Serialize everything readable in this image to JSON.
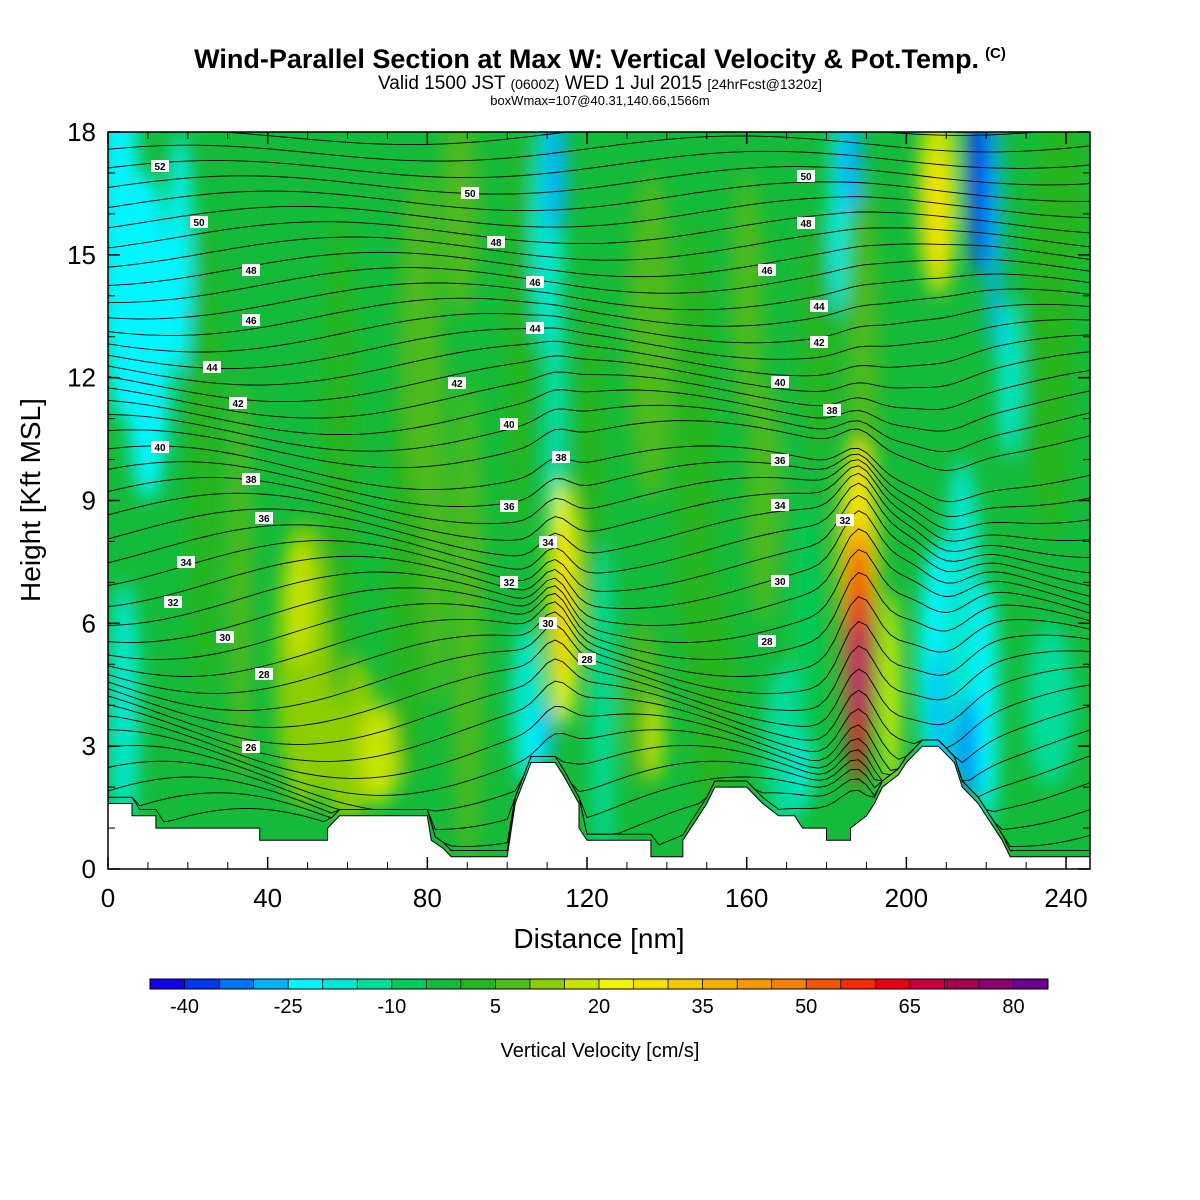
{
  "title": "Wind-Parallel Section at Max W: Vertical Velocity & Pot.Temp.",
  "copyright": "(C)",
  "subtitle": {
    "valid": "Valid 1500 JST",
    "utc": "(0600Z)",
    "date": "WED 1 Jul 2015",
    "forecast": "[24hrFcst@1320z]"
  },
  "subtitle2": "boxWmax=107@40.31,140.66,1566m",
  "colorbar_label": "Vertical Velocity [cm/s]",
  "chart_data": {
    "type": "heatmap",
    "xlabel": "Distance [nm]",
    "ylabel": "Height [Kft MSL]",
    "xlim": [
      0,
      246
    ],
    "ylim": [
      0,
      18
    ],
    "xticks": [
      "0",
      "40",
      "80",
      "120",
      "160",
      "200",
      "240"
    ],
    "yticks": [
      "0",
      "3",
      "6",
      "9",
      "12",
      "15",
      "18"
    ],
    "colorbar": {
      "levels": [
        -45,
        -40,
        -35,
        -30,
        -25,
        -20,
        -15,
        -10,
        -5,
        0,
        5,
        10,
        15,
        20,
        25,
        30,
        35,
        40,
        45,
        50,
        55,
        60,
        65,
        70,
        75,
        80,
        85
      ],
      "tick_labels": [
        "-40",
        "-25",
        "-10",
        "5",
        "20",
        "35",
        "50",
        "65",
        "80"
      ],
      "colors": [
        "#1300e6",
        "#0037f0",
        "#0074f5",
        "#00b3f5",
        "#00f5ff",
        "#00e8d0",
        "#00dc9a",
        "#00cc5a",
        "#14bb3a",
        "#27b51f",
        "#4dba1e",
        "#8cce00",
        "#c8e400",
        "#f2f500",
        "#f5e100",
        "#f5c800",
        "#f5b000",
        "#f59b00",
        "#f57f00",
        "#f25400",
        "#f52a00",
        "#e60012",
        "#c9003a",
        "#a90050",
        "#880070",
        "#6a0090"
      ]
    },
    "theta_contour_labels": [
      "26",
      "28",
      "30",
      "32",
      "34",
      "36",
      "38",
      "40",
      "42",
      "44",
      "46",
      "48",
      "50",
      "52"
    ],
    "max_w": {
      "value": 107,
      "lat": 40.31,
      "lon": 140.66,
      "height_m": 1566
    }
  }
}
